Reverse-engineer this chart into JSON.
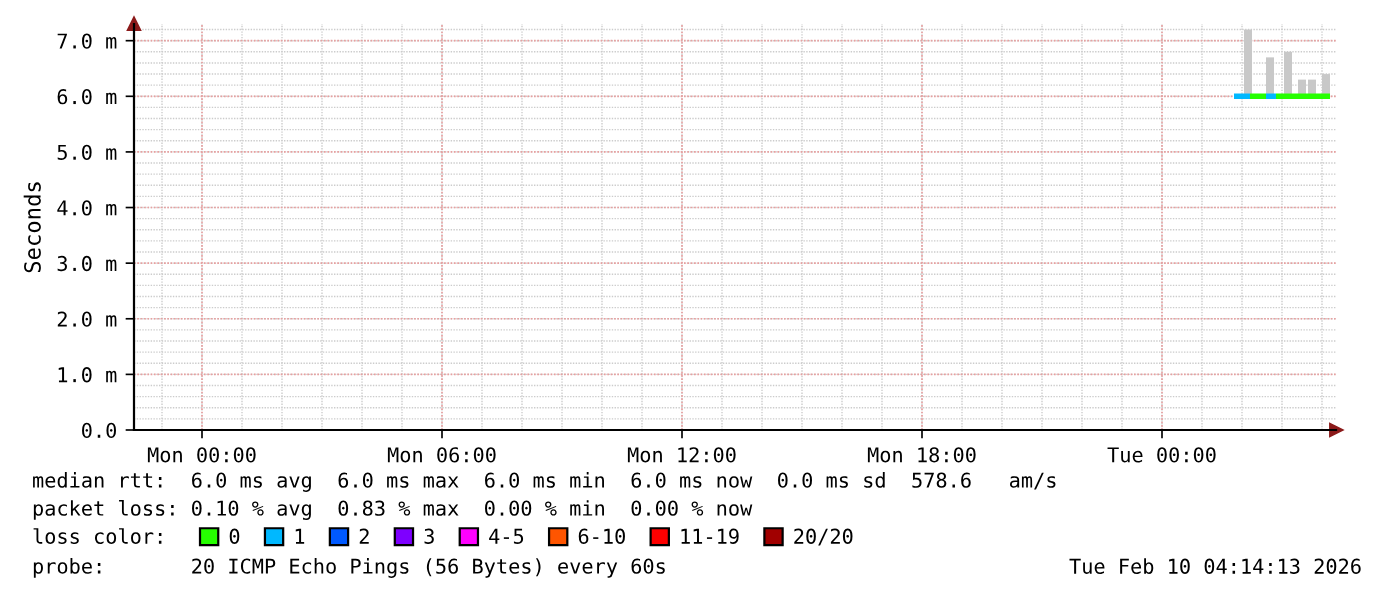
{
  "chart_data": {
    "type": "line",
    "ylabel": "Seconds",
    "xlim": [
      "2026-02-08T22:18",
      "2026-02-10T04:21"
    ],
    "xticks": [
      {
        "value": "2026-02-09T00:00",
        "label": "Mon 00:00"
      },
      {
        "value": "2026-02-09T06:00",
        "label": "Mon 06:00"
      },
      {
        "value": "2026-02-09T12:00",
        "label": "Mon 12:00"
      },
      {
        "value": "2026-02-09T18:00",
        "label": "Mon 18:00"
      },
      {
        "value": "2026-02-10T00:00",
        "label": "Tue 00:00"
      }
    ],
    "ylim": [
      0,
      7.3
    ],
    "yticks": [
      {
        "value": 0,
        "label": "0.0"
      },
      {
        "value": 1,
        "label": "1.0 m"
      },
      {
        "value": 2,
        "label": "2.0 m"
      },
      {
        "value": 3,
        "label": "3.0 m"
      },
      {
        "value": 4,
        "label": "4.0 m"
      },
      {
        "value": 5,
        "label": "5.0 m"
      },
      {
        "value": 6,
        "label": "6.0 m"
      },
      {
        "value": 7,
        "label": "7.0 m"
      }
    ],
    "grid": true,
    "legend": "bottom",
    "legend_title": "loss color:",
    "series": [
      {
        "type": "bar",
        "color": "#c8c8c8",
        "x": [
          "2026-02-10T02:09",
          "2026-02-10T02:42",
          "2026-02-10T03:09",
          "2026-02-10T03:30",
          "2026-02-10T03:45",
          "2026-02-10T04:06"
        ],
        "base": [
          6.0,
          6.0,
          6.0,
          6.0,
          6.0,
          6.0
        ],
        "values": [
          1.2,
          0.7,
          0.8,
          0.3,
          0.3,
          0.4
        ]
      },
      {
        "name": "0",
        "color": "#26ff00",
        "x": [
          "2026-02-10T02:12",
          "2026-02-10T02:36",
          "2026-02-10T02:44",
          "2026-02-10T02:51",
          "2026-02-10T04:12"
        ],
        "values": [
          6.0,
          6.0,
          null,
          6.0,
          6.0
        ]
      },
      {
        "name": "1",
        "color": "#00b8ff",
        "x": [
          "2026-02-10T01:48",
          "2026-02-10T02:12",
          "2026-02-10T02:20",
          "2026-02-10T02:36",
          "2026-02-10T02:51"
        ],
        "values": [
          6.0,
          6.0,
          null,
          6.0,
          6.0
        ]
      },
      {
        "name": "2",
        "color": "#0059ff"
      },
      {
        "name": "3",
        "color": "#7e00ff"
      },
      {
        "name": "4-5",
        "color": "#ff00ff"
      },
      {
        "name": "6-10",
        "color": "#ff5500"
      },
      {
        "name": "11-19",
        "color": "#ff0000"
      },
      {
        "name": "20/20",
        "color": "#a10000"
      }
    ],
    "annotations": [
      "median rtt:  6.0 ms avg  6.0 ms max  6.0 ms min  6.0 ms now  0.0 ms sd  578.6   am/s",
      "packet loss: 0.10 % avg  0.83 % max  0.00 % min  0.00 % now",
      "probe:       20 ICMP Echo Pings (56 Bytes) every 60s",
      "Tue Feb 10 04:14:13 2026"
    ]
  }
}
